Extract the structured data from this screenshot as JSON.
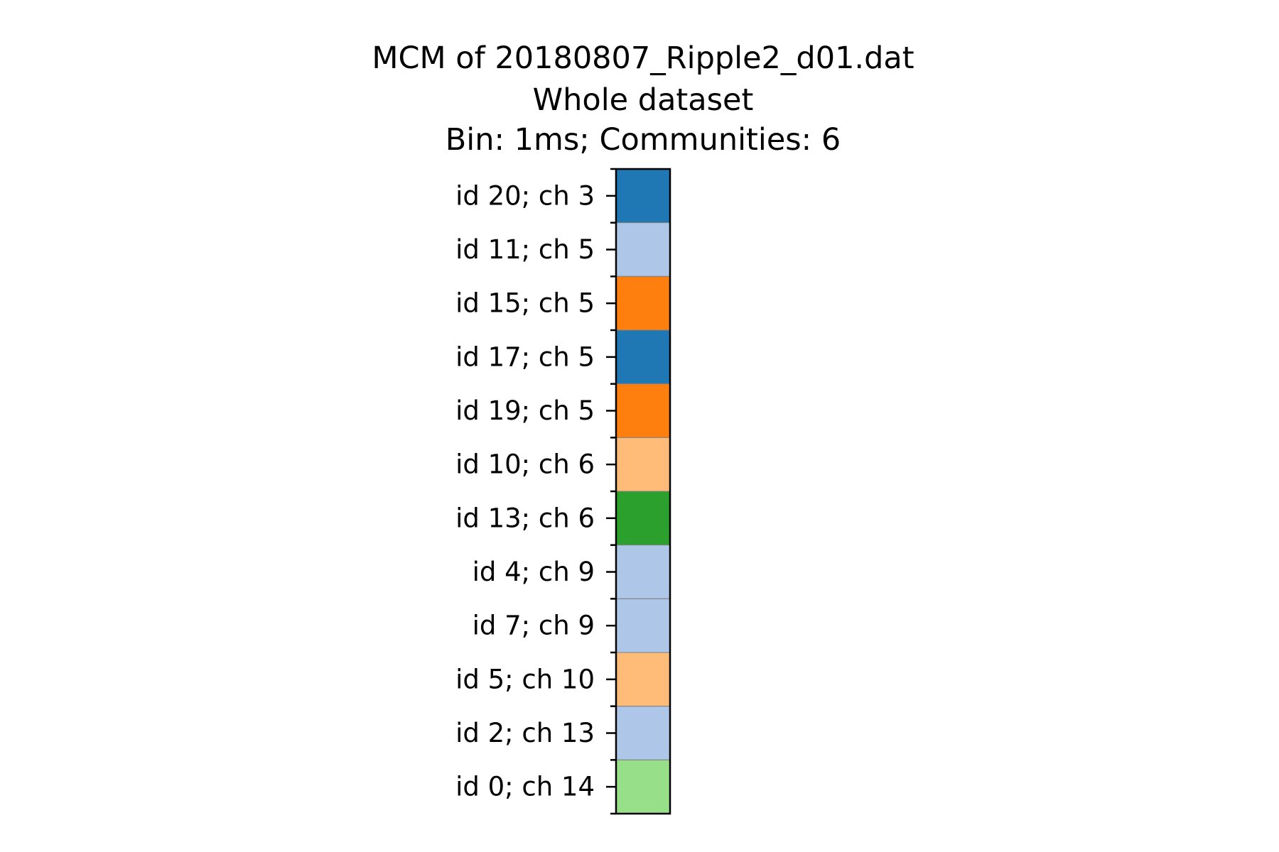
{
  "chart_data": {
    "type": "heatmap",
    "title": [
      "MCM of 20180807_Ripple2_d01.dat",
      "Whole dataset",
      "Bin: 1ms; Communities: 6"
    ],
    "xlabel": "",
    "ylabel": "",
    "grid": false,
    "legend": "none",
    "rows": [
      {
        "label": "id 20; ch 3",
        "community": 0
      },
      {
        "label": "id 11; ch 5",
        "community": 1
      },
      {
        "label": "id 15; ch 5",
        "community": 2
      },
      {
        "label": "id 17; ch 5",
        "community": 0
      },
      {
        "label": "id 19; ch 5",
        "community": 2
      },
      {
        "label": "id 10; ch 6",
        "community": 3
      },
      {
        "label": "id 13; ch 6",
        "community": 4
      },
      {
        "label": "id 4; ch 9",
        "community": 1
      },
      {
        "label": "id 7; ch 9",
        "community": 1
      },
      {
        "label": "id 5; ch 10",
        "community": 3
      },
      {
        "label": "id 2; ch 13",
        "community": 1
      },
      {
        "label": "id 0; ch 14",
        "community": 5
      }
    ],
    "community_colors": [
      "#1f77b4",
      "#aec7e8",
      "#ff7f0e",
      "#ffbb78",
      "#2ca02c",
      "#98df8a"
    ]
  }
}
